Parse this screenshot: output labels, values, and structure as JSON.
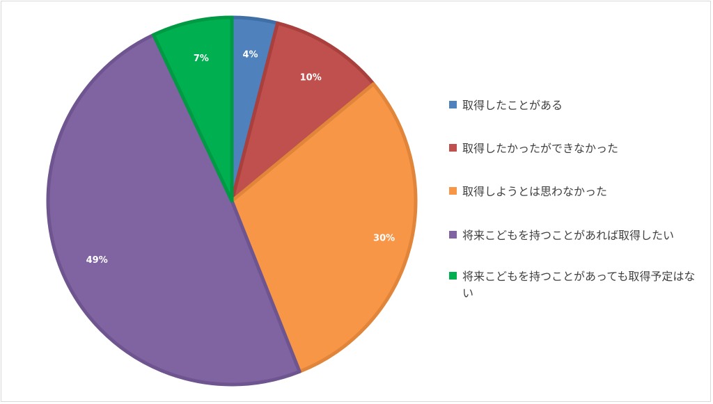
{
  "chart_data": {
    "type": "pie",
    "start_angle_deg": 0,
    "direction": "clockwise",
    "slices": [
      {
        "label": "取得したことがある",
        "value": 4,
        "value_label": "4%",
        "color": "#4F81BD",
        "border": "#3F6FA5"
      },
      {
        "label": "取得したかったができなかった",
        "value": 10,
        "value_label": "10%",
        "color": "#C0504D",
        "border": "#A9403D"
      },
      {
        "label": "取得しようとは思わなかった",
        "value": 30,
        "value_label": "30%",
        "color": "#F79646",
        "border": "#E0853A"
      },
      {
        "label": "将来こどもを持つことがあれば取得したい",
        "value": 49,
        "value_label": "49%",
        "color": "#8064A2",
        "border": "#6E5590"
      },
      {
        "label": "将来こどもを持つことがあっても取得予定はない",
        "value": 7,
        "value_label": "7%",
        "color": "#00B050",
        "border": "#009A45"
      }
    ],
    "legend": {
      "position": "right",
      "entries": [
        "取得したことがある",
        "取得したかったができなかった",
        "取得しようとは思わなかった",
        "将来こどもを持つことがあれば取得したい",
        "将来こどもを持つことがあっても取得予定はない"
      ]
    }
  }
}
